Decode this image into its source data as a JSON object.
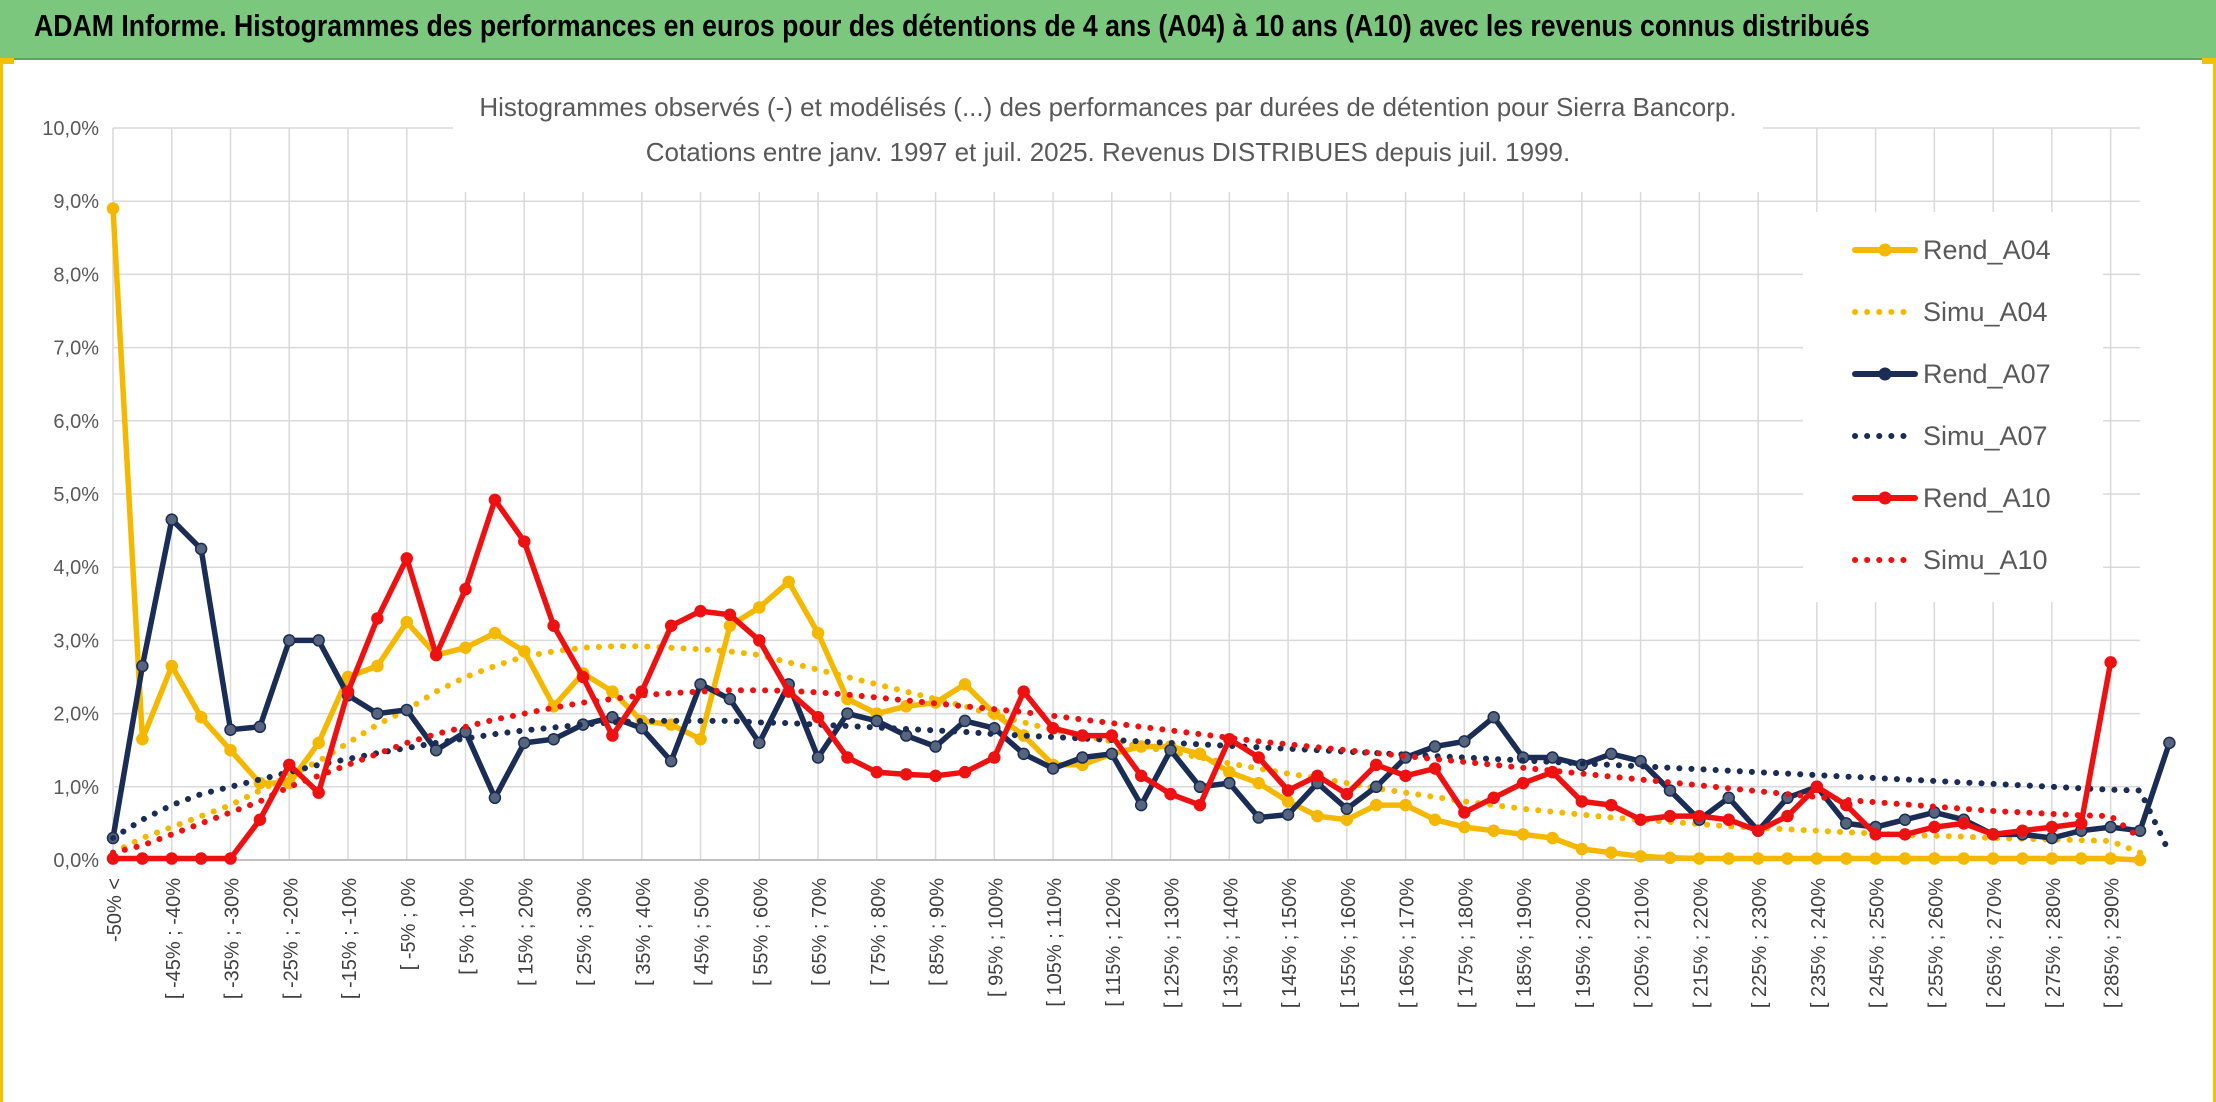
{
  "header": {
    "title": "ADAM Informe. Histogrammes des performances en euros pour des détentions de 4 ans (A04) à 10 ans (A10) avec les revenus connus distribués"
  },
  "colors": {
    "header_bg": "#7bc77e",
    "gold": "#f5b800",
    "navy": "#1b2d54",
    "red": "#ee1111",
    "grid": "#d9d9d9"
  },
  "chart_data": {
    "type": "line",
    "title": "Histogrammes observés (-) et modélisés (...) des performances par durées de détention pour Sierra Bancorp.",
    "subtitle": "Cotations entre janv. 1997 et juil. 2025. Revenus DISTRIBUES depuis juil. 1999.",
    "ylim": [
      0,
      10
    ],
    "yticks": [
      "0,0%",
      "1,0%",
      "2,0%",
      "3,0%",
      "4,0%",
      "5,0%",
      "6,0%",
      "7,0%",
      "8,0%",
      "9,0%",
      "10,0%"
    ],
    "grid": true,
    "legend_position": "top-right",
    "x_labels": [
      "-50% <",
      "[ -45% ; -40%",
      "[ -35% ; -30%",
      "[ -25% ; -20%",
      "[ -15% ; -10%",
      "[ -5% ; 0%",
      "[ 5% ; 10%",
      "[ 15% ; 20%",
      "[ 25% ; 30%",
      "[ 35% ; 40%",
      "[ 45% ; 50%",
      "[ 55% ; 60%",
      "[ 65% ; 70%",
      "[ 75% ; 80%",
      "[ 85% ; 90%",
      "[ 95% ; 100%",
      "[ 105% ; 110%",
      "[ 115% ; 120%",
      "[ 125% ; 130%",
      "[ 135% ; 140%",
      "[ 145% ; 150%",
      "[ 155% ; 160%",
      "[ 165% ; 170%",
      "[ 175% ; 180%",
      "[ 185% ; 190%",
      "[ 195% ; 200%",
      "[ 205% ; 210%",
      "[ 215% ; 220%",
      "[ 225% ; 230%",
      "[ 235% ; 240%",
      "[ 245% ; 250%",
      "[ 255% ; 260%",
      "[ 265% ; 270%",
      "[ 275% ; 280%",
      "[ 285% ; 290%"
    ],
    "series": [
      {
        "name": "Rend_A04",
        "style": "solid",
        "marker": true,
        "color": "#f5b800",
        "values": [
          8.9,
          1.65,
          2.65,
          1.95,
          1.5,
          1.05,
          1.05,
          1.6,
          2.5,
          2.65,
          3.25,
          2.8,
          2.9,
          3.1,
          2.85,
          2.1,
          2.55,
          2.3,
          1.9,
          1.85,
          1.65,
          3.2,
          3.45,
          3.8,
          3.1,
          2.2,
          2.0,
          2.1,
          2.15,
          2.4,
          2.0,
          1.7,
          1.3,
          1.3,
          1.45,
          1.55,
          1.55,
          1.45,
          1.2,
          1.05,
          0.8,
          0.6,
          0.55,
          0.75,
          0.75,
          0.55,
          0.45,
          0.4,
          0.35,
          0.3,
          0.15,
          0.1,
          0.05,
          0.03,
          0.02,
          0.02,
          0.02,
          0.02,
          0.02,
          0.02,
          0.02,
          0.02,
          0.02,
          0.02,
          0.02,
          0.02,
          0.02,
          0.02,
          0.02,
          0.0
        ]
      },
      {
        "name": "Simu_A04",
        "style": "dotted",
        "marker": false,
        "color": "#f5b800",
        "values": [
          0.1,
          0.3,
          0.45,
          0.6,
          0.75,
          0.95,
          1.15,
          1.35,
          1.6,
          1.85,
          2.05,
          2.3,
          2.5,
          2.65,
          2.78,
          2.85,
          2.9,
          2.92,
          2.92,
          2.9,
          2.88,
          2.85,
          2.8,
          2.7,
          2.6,
          2.5,
          2.4,
          2.3,
          2.2,
          2.1,
          1.98,
          1.88,
          1.78,
          1.7,
          1.62,
          1.55,
          1.48,
          1.4,
          1.32,
          1.25,
          1.18,
          1.12,
          1.05,
          0.98,
          0.92,
          0.86,
          0.8,
          0.75,
          0.7,
          0.66,
          0.62,
          0.58,
          0.55,
          0.52,
          0.49,
          0.46,
          0.44,
          0.42,
          0.4,
          0.38,
          0.36,
          0.34,
          0.33,
          0.32,
          0.3,
          0.29,
          0.28,
          0.27,
          0.26,
          0.1
        ]
      },
      {
        "name": "Rend_A07",
        "style": "solid",
        "marker": true,
        "color": "#1b2d54",
        "values": [
          0.3,
          2.65,
          4.65,
          4.25,
          1.78,
          1.82,
          3.0,
          3.0,
          2.25,
          2.0,
          2.05,
          1.5,
          1.75,
          0.85,
          1.6,
          1.65,
          1.85,
          1.95,
          1.8,
          1.35,
          2.4,
          2.2,
          1.6,
          2.4,
          1.4,
          2.0,
          1.9,
          1.7,
          1.55,
          1.9,
          1.8,
          1.45,
          1.25,
          1.4,
          1.45,
          0.75,
          1.5,
          1.0,
          1.05,
          0.58,
          0.62,
          1.05,
          0.7,
          1.0,
          1.4,
          1.55,
          1.62,
          1.95,
          1.4,
          1.4,
          1.3,
          1.45,
          1.35,
          0.95,
          0.55,
          0.85,
          0.4,
          0.85,
          1.0,
          0.5,
          0.45,
          0.55,
          0.65,
          0.55,
          0.35,
          0.35,
          0.3,
          0.4,
          0.45,
          0.4,
          1.6
        ]
      },
      {
        "name": "Simu_A07",
        "style": "dotted",
        "marker": false,
        "color": "#1b2d54",
        "values": [
          0.3,
          0.55,
          0.75,
          0.9,
          1.0,
          1.1,
          1.2,
          1.3,
          1.38,
          1.46,
          1.53,
          1.6,
          1.66,
          1.72,
          1.77,
          1.81,
          1.85,
          1.88,
          1.9,
          1.9,
          1.9,
          1.9,
          1.88,
          1.87,
          1.85,
          1.83,
          1.81,
          1.79,
          1.77,
          1.75,
          1.72,
          1.7,
          1.68,
          1.66,
          1.64,
          1.62,
          1.6,
          1.58,
          1.56,
          1.54,
          1.52,
          1.5,
          1.48,
          1.46,
          1.44,
          1.42,
          1.4,
          1.38,
          1.36,
          1.34,
          1.32,
          1.3,
          1.28,
          1.26,
          1.24,
          1.22,
          1.2,
          1.18,
          1.16,
          1.14,
          1.12,
          1.1,
          1.08,
          1.06,
          1.04,
          1.02,
          1.0,
          0.98,
          0.96,
          0.95,
          0.1
        ]
      },
      {
        "name": "Rend_A10",
        "style": "solid",
        "marker": true,
        "color": "#ee1111",
        "values": [
          0.02,
          0.02,
          0.02,
          0.02,
          0.02,
          0.55,
          1.3,
          0.92,
          2.3,
          3.3,
          4.12,
          2.8,
          3.7,
          4.92,
          4.35,
          3.2,
          2.5,
          1.7,
          2.3,
          3.2,
          3.4,
          3.35,
          3.0,
          2.3,
          1.95,
          1.4,
          1.2,
          1.17,
          1.15,
          1.2,
          1.4,
          2.3,
          1.8,
          1.7,
          1.7,
          1.15,
          0.9,
          0.75,
          1.65,
          1.4,
          0.95,
          1.15,
          0.9,
          1.3,
          1.15,
          1.25,
          0.65,
          0.85,
          1.05,
          1.2,
          0.8,
          0.75,
          0.55,
          0.6,
          0.6,
          0.55,
          0.4,
          0.6,
          1.0,
          0.75,
          0.35,
          0.35,
          0.45,
          0.5,
          0.35,
          0.4,
          0.45,
          0.5,
          2.7
        ]
      },
      {
        "name": "Simu_A10",
        "style": "dotted",
        "marker": false,
        "color": "#ee1111",
        "values": [
          0.1,
          0.2,
          0.35,
          0.5,
          0.65,
          0.8,
          1.0,
          1.15,
          1.3,
          1.45,
          1.6,
          1.72,
          1.82,
          1.92,
          2.0,
          2.08,
          2.15,
          2.2,
          2.25,
          2.28,
          2.3,
          2.32,
          2.32,
          2.31,
          2.29,
          2.26,
          2.22,
          2.18,
          2.14,
          2.1,
          2.06,
          2.02,
          1.97,
          1.92,
          1.87,
          1.82,
          1.77,
          1.72,
          1.67,
          1.62,
          1.58,
          1.54,
          1.5,
          1.46,
          1.42,
          1.38,
          1.34,
          1.3,
          1.26,
          1.22,
          1.18,
          1.14,
          1.1,
          1.06,
          1.02,
          0.98,
          0.94,
          0.9,
          0.86,
          0.82,
          0.79,
          0.76,
          0.73,
          0.7,
          0.67,
          0.65,
          0.63,
          0.61,
          0.6,
          0.3
        ]
      }
    ]
  }
}
